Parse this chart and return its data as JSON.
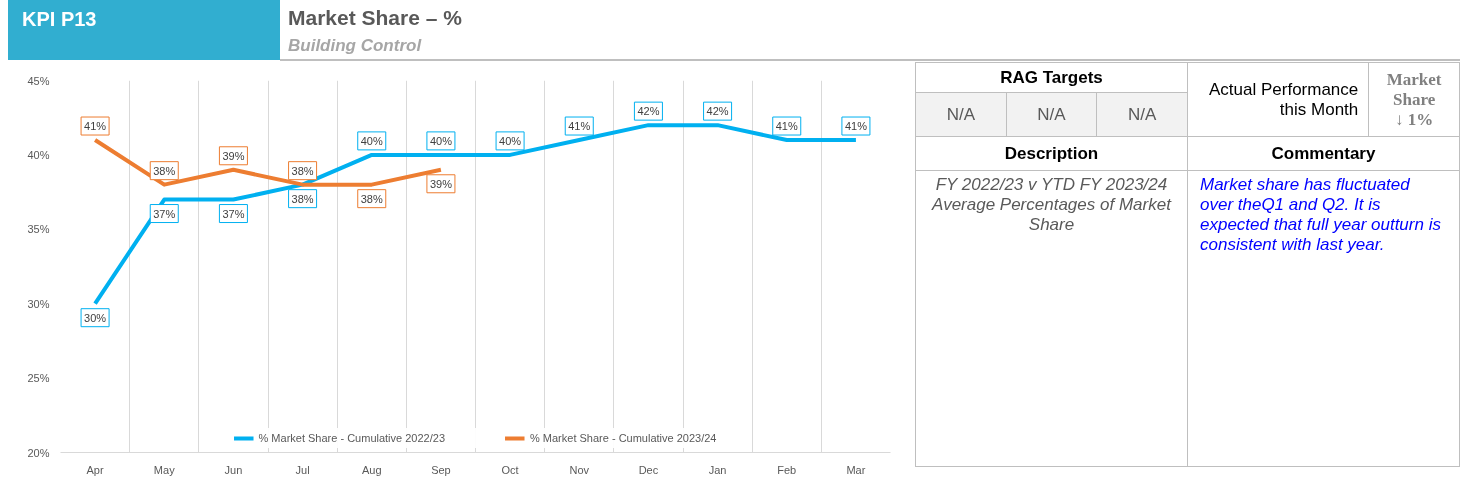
{
  "chart_data": [
    {
      "type": "line",
      "title": "Market Share – %",
      "subtitle": "Building Control",
      "annotations": [
        "KPI P13"
      ],
      "categories": [
        "Apr",
        "May",
        "Jun",
        "Jul",
        "Aug",
        "Sep",
        "Oct",
        "Nov",
        "Dec",
        "Jan",
        "Feb",
        "Mar"
      ],
      "series": [
        {
          "name": "% Market Share - Cumulative 2022/23",
          "color": "#00b0f0",
          "values": [
            30,
            37,
            37,
            38,
            40,
            40,
            40,
            41,
            42,
            42,
            41,
            41
          ],
          "value_labels": [
            "30%",
            "37%",
            "37%",
            "38%",
            "40%",
            "40%",
            "40%",
            "41%",
            "42%",
            "42%",
            "41%",
            "41%"
          ]
        },
        {
          "name": "% Market Share - Cumulative 2023/24",
          "color": "#ed7d31",
          "values": [
            41,
            38,
            39,
            38,
            38,
            39,
            null,
            null,
            null,
            null,
            null,
            null
          ],
          "value_labels": [
            "41%",
            "38%",
            "39%",
            "38%",
            "38%",
            "39%",
            null,
            null,
            null,
            null,
            null,
            null
          ]
        }
      ],
      "ylim": [
        20,
        45
      ],
      "yticks": [
        {
          "value": 20,
          "label": "20%"
        },
        {
          "value": 25,
          "label": "25%"
        },
        {
          "value": 30,
          "label": "30%"
        },
        {
          "value": 35,
          "label": "35%"
        },
        {
          "value": 40,
          "label": "40%"
        },
        {
          "value": 45,
          "label": "45%"
        }
      ],
      "grid": "x",
      "legend": "bottom",
      "marker": "none",
      "line_style": "solid"
    },
    {
      "type": "other",
      "annotations": [
        "RAG Targets",
        "N/A",
        "N/A",
        "N/A",
        "Actual Performance this Month",
        "Market Share",
        "↓ 1%",
        "Description",
        "Commentary",
        "FY 2022/23 v YTD FY 2023/24 Average Percentages of Market Share",
        "Market share has fluctuated over theQ1 and Q2. It is expected that full year outturn is consistent with last year."
      ]
    }
  ]
}
